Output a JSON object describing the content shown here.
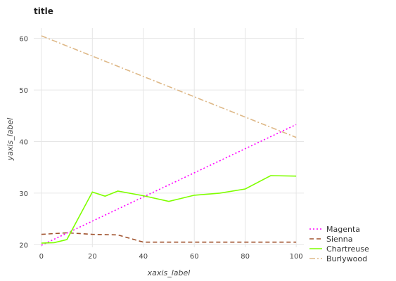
{
  "chart_data": {
    "type": "line",
    "title": "title",
    "xlabel": "xaxis_label",
    "ylabel": "yaxis_label",
    "xlim": [
      -3,
      103
    ],
    "ylim": [
      19.5,
      62
    ],
    "x_ticks": [
      0,
      20,
      40,
      60,
      80,
      100
    ],
    "y_ticks": [
      20,
      30,
      40,
      50,
      60
    ],
    "grid": true,
    "legend_position": "right",
    "series": [
      {
        "name": "Magenta",
        "color": "#ff00ff",
        "dash": "dotted",
        "x": [
          0,
          100
        ],
        "y": [
          19.9,
          43.3
        ]
      },
      {
        "name": "Sienna",
        "color": "#a0522d",
        "dash": "dashed",
        "x": [
          0,
          10,
          20,
          30,
          40,
          50,
          60,
          70,
          80,
          90,
          100
        ],
        "y": [
          22.0,
          22.3,
          22.0,
          21.9,
          20.5,
          20.5,
          20.5,
          20.5,
          20.5,
          20.5,
          20.5
        ]
      },
      {
        "name": "Chartreuse",
        "color": "#7fff00",
        "dash": "solid",
        "x": [
          0,
          5,
          10,
          20,
          25,
          30,
          40,
          50,
          60,
          70,
          80,
          90,
          100
        ],
        "y": [
          20.3,
          20.4,
          21.0,
          30.2,
          29.4,
          30.4,
          29.5,
          28.4,
          29.6,
          30.0,
          30.8,
          33.4,
          33.3
        ]
      },
      {
        "name": "Burlywood",
        "color": "#deb887",
        "dash": "dashdot",
        "x": [
          0,
          100
        ],
        "y": [
          60.5,
          40.8
        ]
      }
    ]
  }
}
